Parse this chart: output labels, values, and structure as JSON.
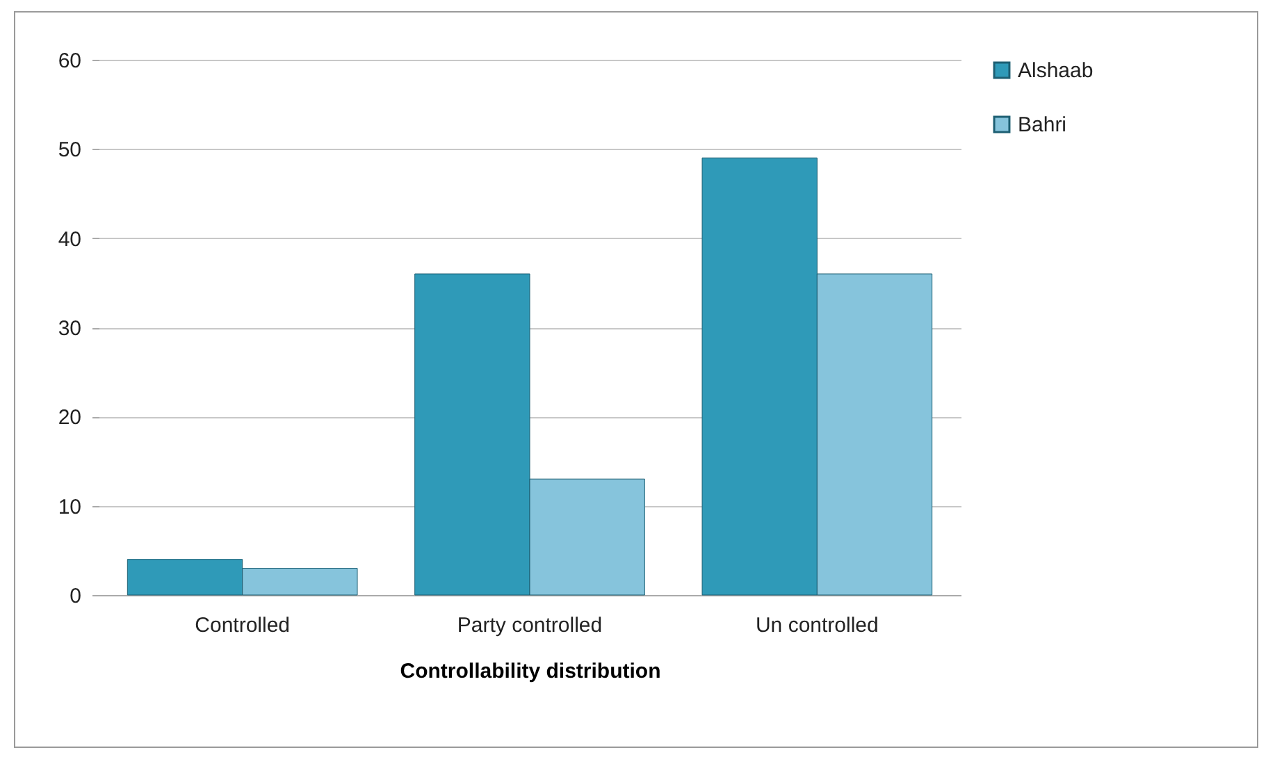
{
  "chart_data": {
    "type": "bar",
    "xlabel": "Controllability  distribution",
    "categories": [
      "Controlled",
      "Party controlled",
      "Un controlled"
    ],
    "series": [
      {
        "name": "Alshaab",
        "color": "#2f9ab8",
        "values": [
          4,
          36,
          49
        ]
      },
      {
        "name": "Bahri",
        "color": "#86c4dc",
        "values": [
          3,
          13,
          36
        ]
      }
    ],
    "ylim": [
      0,
      60
    ],
    "yticks": [
      0,
      10,
      20,
      30,
      40,
      50,
      60
    ],
    "grid": "y",
    "legend": "right"
  }
}
